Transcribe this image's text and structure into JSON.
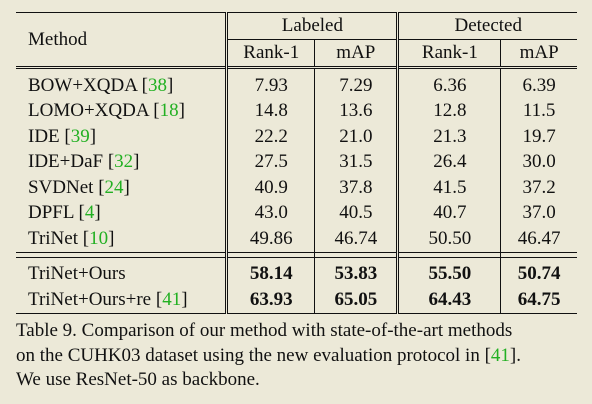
{
  "table": {
    "header": {
      "method": "Method",
      "group_labeled": "Labeled",
      "group_detected": "Detected",
      "rank1": "Rank-1",
      "map": "mAP"
    },
    "rows": [
      {
        "method": "BOW+XQDA",
        "cite": "38",
        "lab_rank1": "7.93",
        "lab_map": "7.29",
        "det_rank1": "6.36",
        "det_map": "6.39"
      },
      {
        "method": "LOMO+XQDA",
        "cite": "18",
        "lab_rank1": "14.8",
        "lab_map": "13.6",
        "det_rank1": "12.8",
        "det_map": "11.5"
      },
      {
        "method": "IDE",
        "cite": "39",
        "lab_rank1": "22.2",
        "lab_map": "21.0",
        "det_rank1": "21.3",
        "det_map": "19.7"
      },
      {
        "method": "IDE+DaF",
        "cite": "32",
        "lab_rank1": "27.5",
        "lab_map": "31.5",
        "det_rank1": "26.4",
        "det_map": "30.0"
      },
      {
        "method": "SVDNet",
        "cite": "24",
        "lab_rank1": "40.9",
        "lab_map": "37.8",
        "det_rank1": "41.5",
        "det_map": "37.2"
      },
      {
        "method": "DPFL",
        "cite": "4",
        "lab_rank1": "43.0",
        "lab_map": "40.5",
        "det_rank1": "40.7",
        "det_map": "37.0"
      },
      {
        "method": "TriNet",
        "cite": "10",
        "lab_rank1": "49.86",
        "lab_map": "46.74",
        "det_rank1": "50.50",
        "det_map": "46.47"
      }
    ],
    "ours": [
      {
        "method": "TriNet+Ours",
        "cite": "",
        "lab_rank1": "58.14",
        "lab_map": "53.83",
        "det_rank1": "55.50",
        "det_map": "50.74"
      },
      {
        "method": "TriNet+Ours+re",
        "cite": "41",
        "lab_rank1": "63.93",
        "lab_map": "65.05",
        "det_rank1": "64.43",
        "det_map": "64.75"
      }
    ]
  },
  "caption": {
    "line1_pre": "Table 9.  Comparison of our method with state-of-the-art methods",
    "line2_pre": "on the CUHK03 dataset using the new evaluation protocol in [",
    "line2_cite": "41",
    "line2_post": "].",
    "line3": "We use ResNet-50 as backbone."
  },
  "colors": {
    "background": "#ece9d8",
    "citation": "#22b022",
    "text": "#111111"
  }
}
